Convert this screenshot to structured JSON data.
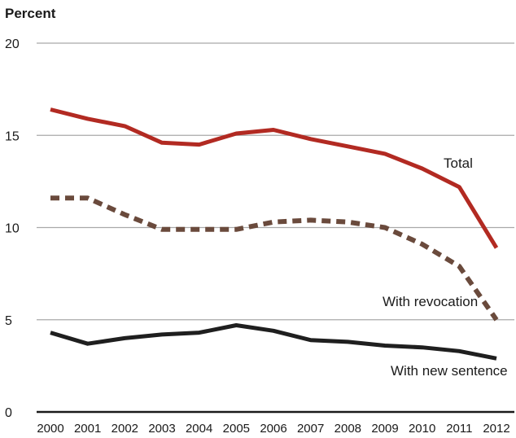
{
  "chart_data": {
    "type": "line",
    "ylabel": "Percent",
    "ylim": [
      0,
      20
    ],
    "yticks": [
      0,
      5,
      10,
      15,
      20
    ],
    "grid": true,
    "x": [
      "2000",
      "2001",
      "2002",
      "2003",
      "2004",
      "2005",
      "2006",
      "2007",
      "2008",
      "2009",
      "2010",
      "2011",
      "2012"
    ],
    "series": [
      {
        "name": "Total",
        "color": "#b22a22",
        "style": "solid",
        "values": [
          16.4,
          15.9,
          15.5,
          14.6,
          14.5,
          15.1,
          15.3,
          14.8,
          14.4,
          14.0,
          13.2,
          12.2,
          8.9
        ]
      },
      {
        "name": "With revocation",
        "color": "#6a4a3c",
        "style": "dashed",
        "values": [
          11.6,
          11.6,
          10.7,
          9.9,
          9.9,
          9.9,
          10.3,
          10.4,
          10.3,
          10.0,
          9.1,
          7.9,
          5.0
        ]
      },
      {
        "name": "With new sentence",
        "color": "#1f1f1f",
        "style": "solid",
        "values": [
          4.3,
          3.7,
          4.0,
          4.2,
          4.3,
          4.7,
          4.4,
          3.9,
          3.8,
          3.6,
          3.5,
          3.3,
          2.9
        ]
      }
    ]
  }
}
